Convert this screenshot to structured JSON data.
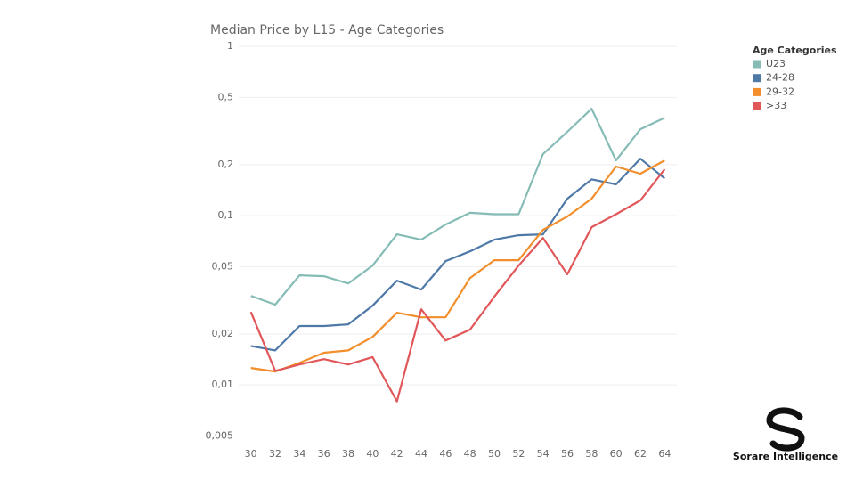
{
  "chart_data": {
    "type": "line",
    "title": "Median Price by L15 - Age Categories",
    "legend_title": "Age Categories",
    "legend": "right",
    "log_y": true,
    "grid": true,
    "x": [
      30,
      32,
      34,
      36,
      38,
      40,
      42,
      44,
      46,
      48,
      50,
      52,
      54,
      56,
      58,
      60,
      62,
      64
    ],
    "xlim": [
      29,
      65
    ],
    "xticks": [
      30,
      32,
      34,
      36,
      38,
      40,
      42,
      44,
      46,
      48,
      50,
      52,
      54,
      56,
      58,
      60,
      62,
      64
    ],
    "ylim": [
      0.0038,
      1.09
    ],
    "yticks": [
      1,
      {
        "value": 0.5,
        "label": "0,5"
      },
      {
        "value": 0.2,
        "label": "0,2"
      },
      {
        "value": 0.1,
        "label": "0,1"
      },
      {
        "value": 0.05,
        "label": "0,05"
      },
      {
        "value": 0.02,
        "label": "0,02"
      },
      {
        "value": 0.01,
        "label": "0,01"
      },
      {
        "value": 0.005,
        "label": "0,005"
      }
    ],
    "series": [
      {
        "name": "U23",
        "color": "#86bcb6",
        "values": [
          0.0336,
          0.0298,
          0.0444,
          0.0439,
          0.0398,
          0.0507,
          0.0776,
          0.0721,
          0.0886,
          0.104,
          0.102,
          0.102,
          0.231,
          0.313,
          0.428,
          0.212,
          0.324,
          0.379
        ]
      },
      {
        "name": "24-28",
        "color": "#4e79a7",
        "values": [
          0.017,
          0.016,
          0.0223,
          0.0223,
          0.0228,
          0.0294,
          0.0413,
          0.0366,
          0.0539,
          0.0615,
          0.0721,
          0.0766,
          0.0776,
          0.126,
          0.164,
          0.153,
          0.217,
          0.166
        ]
      },
      {
        "name": "29-32",
        "color": "#f28e2b",
        "values": [
          0.0126,
          0.012,
          0.0135,
          0.0155,
          0.016,
          0.0192,
          0.0267,
          0.0251,
          0.0251,
          0.0428,
          0.0546,
          0.0546,
          0.0824,
          0.0988,
          0.126,
          0.195,
          0.177,
          0.212
        ]
      },
      {
        "name": ">33",
        "color": "#e15759",
        "values": [
          0.027,
          0.0121,
          0.0132,
          0.0142,
          0.0132,
          0.0146,
          0.008,
          0.028,
          0.0183,
          0.0212,
          0.0332,
          0.0507,
          0.0738,
          0.045,
          0.0855,
          0.102,
          0.123,
          0.188
        ]
      }
    ]
  },
  "brand": "Sorare Intelligence"
}
